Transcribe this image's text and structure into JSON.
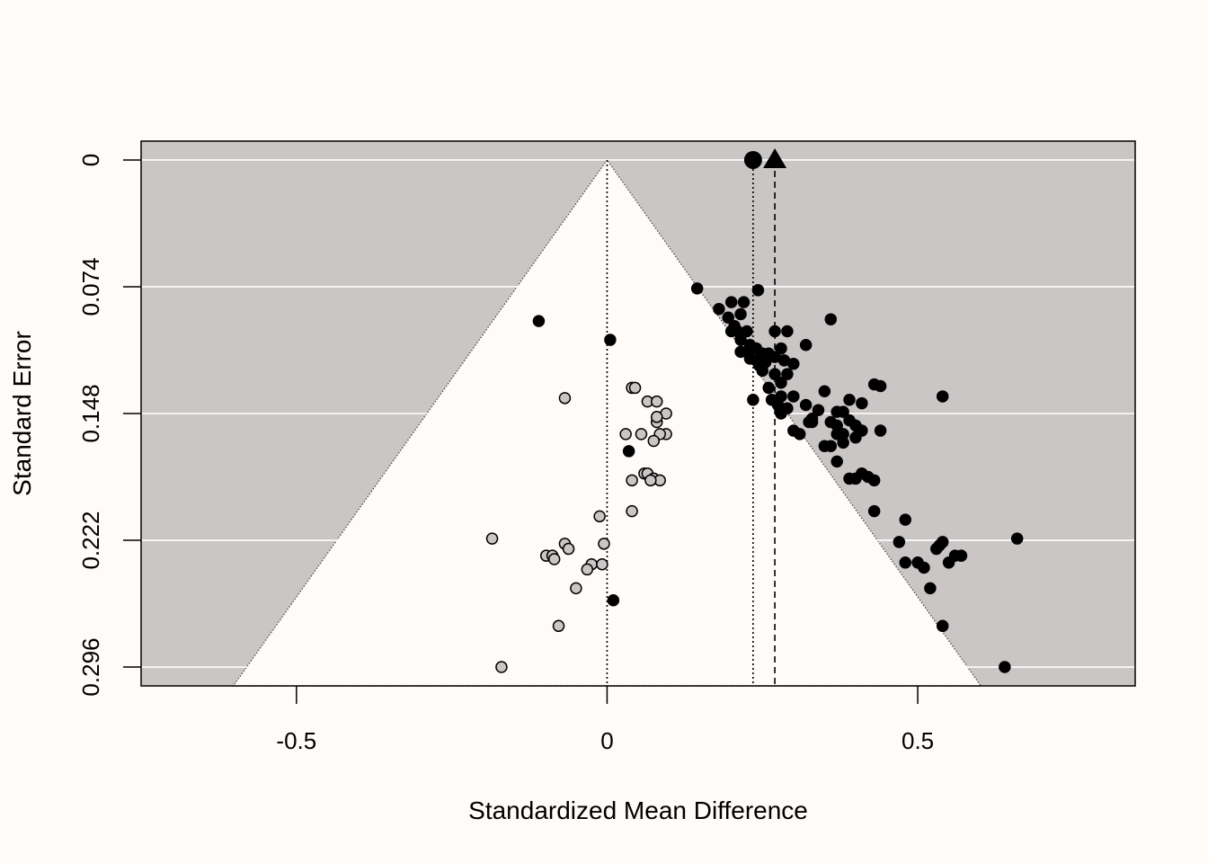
{
  "chart_data": {
    "type": "scatter",
    "title": "",
    "xlabel": "Standardized Mean Difference",
    "ylabel": "Standard Error",
    "xlim": [
      -0.75,
      0.85
    ],
    "ylim": [
      0.307,
      -0.011
    ],
    "y_reversed": true,
    "x_ticks": [
      {
        "value": -0.5,
        "label": "-0.5"
      },
      {
        "value": 0,
        "label": "0"
      },
      {
        "value": 0.5,
        "label": "0.5"
      }
    ],
    "y_ticks": [
      {
        "value": 0,
        "label": "0"
      },
      {
        "value": 0.074,
        "label": "0.074"
      },
      {
        "value": 0.148,
        "label": "0.148"
      },
      {
        "value": 0.222,
        "label": "0.222"
      },
      {
        "value": 0.296,
        "label": "0.296"
      }
    ],
    "grid": "horizontal",
    "funnel": {
      "center": 0,
      "max_se": 0.307,
      "z": 1.96
    },
    "reference_lines": [
      {
        "x": 0,
        "style": "dotted"
      },
      {
        "x": 0.235,
        "style": "dotted"
      },
      {
        "x": 0.27,
        "style": "dashed"
      }
    ],
    "summary_points": [
      {
        "x": 0.235,
        "y": 0,
        "shape": "circle"
      },
      {
        "x": 0.27,
        "y": 0,
        "shape": "triangle"
      }
    ],
    "colors": {
      "background": "#fffbf9",
      "shaded_region": "#cac6c5",
      "gridline": "#ffffff",
      "observed_point": "#000000",
      "imputed_point": "#cac6c5"
    },
    "series": [
      {
        "fill": "observed",
        "points": [
          [
            0.145,
            0.075
          ],
          [
            0.243,
            0.076
          ],
          [
            0.18,
            0.087
          ],
          [
            0.2,
            0.083
          ],
          [
            0.22,
            0.083
          ],
          [
            0.195,
            0.092
          ],
          [
            0.215,
            0.09
          ],
          [
            0.205,
            0.097
          ],
          [
            0.21,
            0.1
          ],
          [
            0.225,
            0.1
          ],
          [
            0.36,
            0.093
          ],
          [
            0.29,
            0.1
          ],
          [
            0.27,
            0.1
          ],
          [
            0.2,
            0.1
          ],
          [
            0.215,
            0.105
          ],
          [
            0.23,
            0.108
          ],
          [
            0.24,
            0.11
          ],
          [
            0.215,
            0.112
          ],
          [
            0.225,
            0.112
          ],
          [
            0.25,
            0.113
          ],
          [
            0.26,
            0.113
          ],
          [
            0.28,
            0.11
          ],
          [
            0.32,
            0.108
          ],
          [
            0.23,
            0.116
          ],
          [
            0.24,
            0.117
          ],
          [
            0.255,
            0.118
          ],
          [
            0.27,
            0.115
          ],
          [
            0.285,
            0.117
          ],
          [
            0.245,
            0.12
          ],
          [
            0.25,
            0.123
          ],
          [
            0.3,
            0.119
          ],
          [
            0.27,
            0.125
          ],
          [
            0.29,
            0.125
          ],
          [
            0.28,
            0.13
          ],
          [
            0.26,
            0.133
          ],
          [
            0.3,
            0.138
          ],
          [
            0.28,
            0.138
          ],
          [
            0.35,
            0.135
          ],
          [
            0.265,
            0.14
          ],
          [
            0.235,
            0.14
          ],
          [
            0.275,
            0.143
          ],
          [
            0.29,
            0.145
          ],
          [
            0.32,
            0.143
          ],
          [
            0.34,
            0.146
          ],
          [
            0.28,
            0.148
          ],
          [
            0.33,
            0.151
          ],
          [
            0.325,
            0.153
          ],
          [
            0.3,
            0.158
          ],
          [
            0.31,
            0.16
          ],
          [
            0.33,
            0.153
          ],
          [
            0.37,
            0.147
          ],
          [
            0.38,
            0.147
          ],
          [
            0.39,
            0.14
          ],
          [
            0.41,
            0.142
          ],
          [
            0.43,
            0.131
          ],
          [
            0.44,
            0.132
          ],
          [
            0.54,
            0.138
          ],
          [
            0.36,
            0.153
          ],
          [
            0.37,
            0.155
          ],
          [
            0.39,
            0.152
          ],
          [
            0.4,
            0.155
          ],
          [
            0.37,
            0.16
          ],
          [
            0.38,
            0.16
          ],
          [
            0.41,
            0.158
          ],
          [
            0.44,
            0.158
          ],
          [
            0.38,
            0.165
          ],
          [
            0.4,
            0.162
          ],
          [
            0.35,
            0.167
          ],
          [
            0.36,
            0.167
          ],
          [
            0.37,
            0.176
          ],
          [
            0.39,
            0.186
          ],
          [
            0.4,
            0.186
          ],
          [
            0.41,
            0.183
          ],
          [
            0.42,
            0.185
          ],
          [
            0.43,
            0.187
          ],
          [
            0.43,
            0.205
          ],
          [
            0.48,
            0.21
          ],
          [
            0.47,
            0.223
          ],
          [
            0.48,
            0.235
          ],
          [
            0.5,
            0.235
          ],
          [
            0.51,
            0.238
          ],
          [
            0.53,
            0.227
          ],
          [
            0.535,
            0.225
          ],
          [
            0.54,
            0.223
          ],
          [
            0.55,
            0.235
          ],
          [
            0.56,
            0.231
          ],
          [
            0.57,
            0.231
          ],
          [
            0.52,
            0.25
          ],
          [
            0.54,
            0.272
          ],
          [
            0.64,
            0.296
          ],
          [
            0.66,
            0.221
          ],
          [
            -0.11,
            0.094
          ],
          [
            0.005,
            0.105
          ],
          [
            0.035,
            0.17
          ],
          [
            0.01,
            0.257
          ]
        ]
      },
      {
        "fill": "imputed",
        "points": [
          [
            0.04,
            0.133
          ],
          [
            0.045,
            0.133
          ],
          [
            0.065,
            0.141
          ],
          [
            0.08,
            0.141
          ],
          [
            -0.068,
            0.139
          ],
          [
            0.08,
            0.153
          ],
          [
            0.095,
            0.148
          ],
          [
            0.095,
            0.16
          ],
          [
            0.085,
            0.16
          ],
          [
            0.075,
            0.164
          ],
          [
            0.055,
            0.16
          ],
          [
            0.03,
            0.16
          ],
          [
            0.08,
            0.15
          ],
          [
            0.06,
            0.183
          ],
          [
            0.065,
            0.183
          ],
          [
            0.075,
            0.186
          ],
          [
            0.085,
            0.187
          ],
          [
            0.07,
            0.187
          ],
          [
            0.04,
            0.187
          ],
          [
            0.04,
            0.205
          ],
          [
            -0.012,
            0.208
          ],
          [
            -0.185,
            0.221
          ],
          [
            -0.005,
            0.224
          ],
          [
            -0.068,
            0.224
          ],
          [
            -0.062,
            0.227
          ],
          [
            -0.098,
            0.231
          ],
          [
            -0.088,
            0.231
          ],
          [
            -0.085,
            0.233
          ],
          [
            -0.025,
            0.236
          ],
          [
            -0.008,
            0.236
          ],
          [
            -0.032,
            0.239
          ],
          [
            -0.05,
            0.25
          ],
          [
            -0.078,
            0.272
          ],
          [
            -0.17,
            0.296
          ]
        ]
      }
    ]
  }
}
